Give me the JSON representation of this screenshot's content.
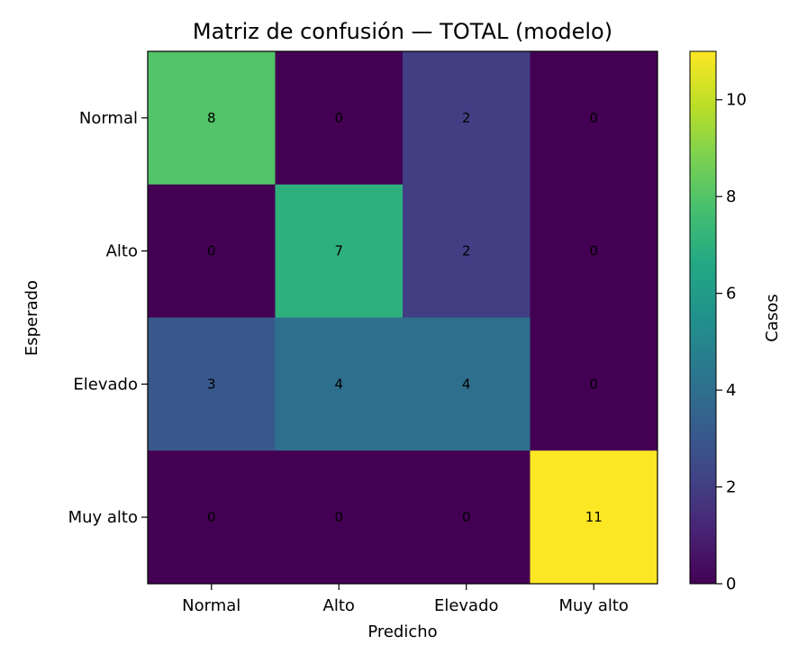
{
  "chart_data": {
    "type": "heatmap",
    "title": "Matriz de confusión — TOTAL (modelo)",
    "xlabel": "Predicho",
    "ylabel": "Esperado",
    "x_categories": [
      "Normal",
      "Alto",
      "Elevado",
      "Muy alto"
    ],
    "y_categories": [
      "Normal",
      "Alto",
      "Elevado",
      "Muy alto"
    ],
    "values": [
      [
        8,
        0,
        2,
        0
      ],
      [
        0,
        7,
        2,
        0
      ],
      [
        3,
        4,
        4,
        0
      ],
      [
        0,
        0,
        0,
        11
      ]
    ],
    "colorscale": "viridis",
    "value_range": [
      0,
      11
    ],
    "colorbar": {
      "label": "Casos",
      "ticks": [
        0,
        2,
        4,
        6,
        8,
        10
      ]
    },
    "grid": false
  }
}
